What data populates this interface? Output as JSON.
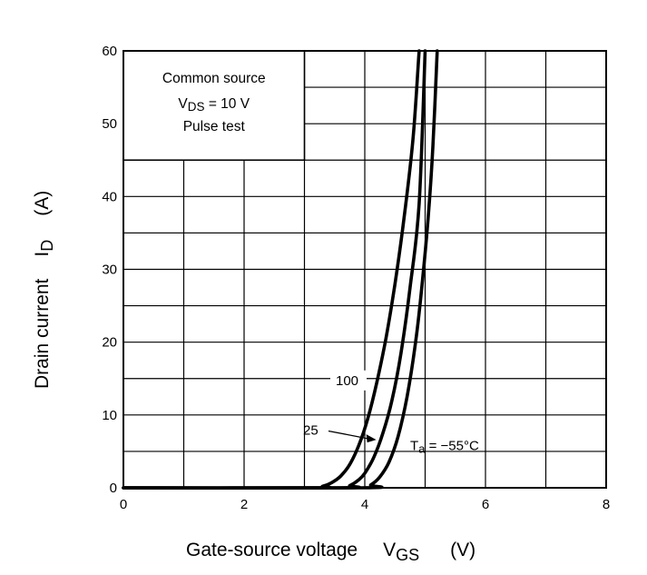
{
  "chart_data": {
    "type": "line",
    "title": "",
    "xlabel_main": "Gate-source voltage",
    "xlabel_symbol": "V",
    "xlabel_sub": "GS",
    "xlabel_unit": "(V)",
    "ylabel_main": "Drain current",
    "ylabel_symbol": "I",
    "ylabel_sub": "D",
    "ylabel_unit": "(A)",
    "xlim": [
      0,
      8
    ],
    "ylim": [
      0,
      60
    ],
    "x_ticks": [
      0,
      2,
      4,
      6,
      8
    ],
    "y_ticks": [
      0,
      10,
      20,
      30,
      40,
      50,
      60
    ],
    "x_grid_step": 1,
    "y_grid_step": 5,
    "grid": true,
    "conditions": {
      "line1": "Common source",
      "line2_symbol": "V",
      "line2_sub": "DS",
      "line2_rest": " = 10 V",
      "line3": "Pulse test"
    },
    "series": [
      {
        "name": "100",
        "x": [
          0,
          3.15,
          3.3,
          3.45,
          3.6,
          3.75,
          3.9,
          4.05,
          4.2,
          4.35,
          4.5,
          4.65,
          4.8,
          4.9
        ],
        "y": [
          0,
          0,
          0.2,
          0.7,
          1.6,
          3.2,
          5.8,
          9.5,
          14.5,
          20.5,
          28,
          37,
          48,
          60
        ]
      },
      {
        "name": "25",
        "x": [
          0,
          3.6,
          3.75,
          3.9,
          4.0,
          4.15,
          4.3,
          4.45,
          4.6,
          4.75,
          4.9,
          5.0
        ],
        "y": [
          0,
          0,
          0.3,
          1.1,
          2.0,
          4.2,
          7.5,
          12,
          18.5,
          27.5,
          39,
          60
        ]
      },
      {
        "name": "Ta = −55°C",
        "label_symbol": "T",
        "label_sub": "a",
        "label_rest": " = −55°C",
        "x": [
          0,
          3.95,
          4.1,
          4.25,
          4.4,
          4.55,
          4.7,
          4.85,
          4.95,
          5.05,
          5.13,
          5.2
        ],
        "y": [
          0,
          0,
          0.4,
          1.5,
          3.5,
          7.0,
          12.5,
          20.5,
          28,
          37,
          47,
          60
        ]
      }
    ]
  }
}
